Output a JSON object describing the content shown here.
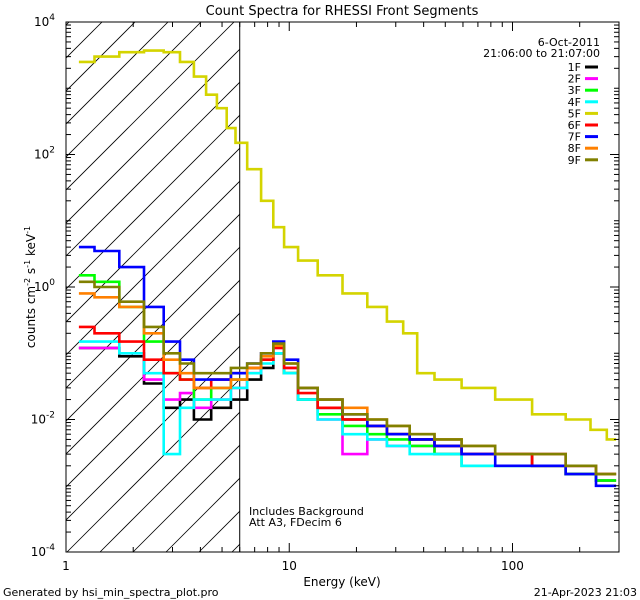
{
  "chart_data": {
    "type": "line",
    "title": "Count Spectra for RHESSI Front Segments",
    "xlabel": "Energy (keV)",
    "ylabel_base": "counts cm",
    "ylabel_exp1": "-2",
    "ylabel_mid": " s",
    "ylabel_exp2": "-1",
    "ylabel_end": " keV",
    "ylabel_exp3": "-1",
    "xscale": "log",
    "yscale": "log",
    "xlim": [
      1,
      300
    ],
    "ylim": [
      0.0001,
      10000
    ],
    "x_ticks": [
      {
        "value": 1,
        "label": "1"
      },
      {
        "value": 10,
        "label": "10"
      },
      {
        "value": 100,
        "label": "100"
      }
    ],
    "y_ticks": [
      {
        "value": 0.0001,
        "label": "10",
        "exp": "-4"
      },
      {
        "value": 0.01,
        "label": "10",
        "exp": "-2"
      },
      {
        "value": 1,
        "label": "10",
        "exp": "0"
      },
      {
        "value": 100,
        "label": "10",
        "exp": "2"
      },
      {
        "value": 10000,
        "label": "10",
        "exp": "4"
      }
    ],
    "date": "6-Oct-2011",
    "time_range": "21:06:00 to 21:07:00",
    "hatched_below_keV": 6,
    "annotation_line1": "Includes Background",
    "annotation_line2": "Att A3, FDecim 6",
    "series": [
      {
        "name": "1F",
        "color": "#000000",
        "values": [
          [
            1.2,
            0.12
          ],
          [
            1.5,
            0.12
          ],
          [
            2.0,
            0.09
          ],
          [
            2.5,
            0.035
          ],
          [
            3.0,
            0.015
          ],
          [
            3.5,
            0.02
          ],
          [
            4.0,
            0.01
          ],
          [
            5.0,
            0.015
          ],
          [
            6.0,
            0.02
          ],
          [
            7.0,
            0.04
          ],
          [
            8.0,
            0.06
          ],
          [
            9.0,
            0.1
          ],
          [
            10.0,
            0.05
          ],
          [
            12.0,
            0.02
          ],
          [
            15.0,
            0.015
          ],
          [
            20.0,
            0.01
          ],
          [
            25.0,
            0.008
          ],
          [
            30.0,
            0.006
          ],
          [
            40.0,
            0.005
          ],
          [
            50.0,
            0.004
          ],
          [
            70.0,
            0.003
          ],
          [
            100.0,
            0.003
          ],
          [
            150.0,
            0.002
          ],
          [
            200.0,
            0.0015
          ],
          [
            280.0,
            0.0012
          ]
        ]
      },
      {
        "name": "2F",
        "color": "#ff00ff",
        "values": [
          [
            1.2,
            0.12
          ],
          [
            1.5,
            0.12
          ],
          [
            2.0,
            0.1
          ],
          [
            2.5,
            0.04
          ],
          [
            3.0,
            0.02
          ],
          [
            3.5,
            0.025
          ],
          [
            4.0,
            0.015
          ],
          [
            5.0,
            0.02
          ],
          [
            6.0,
            0.03
          ],
          [
            7.0,
            0.05
          ],
          [
            8.0,
            0.08
          ],
          [
            9.0,
            0.12
          ],
          [
            10.0,
            0.06
          ],
          [
            12.0,
            0.02
          ],
          [
            15.0,
            0.01
          ],
          [
            20.0,
            0.003
          ],
          [
            25.0,
            0.005
          ],
          [
            30.0,
            0.004
          ],
          [
            40.0,
            0.004
          ],
          [
            50.0,
            0.003
          ],
          [
            70.0,
            0.003
          ],
          [
            100.0,
            0.003
          ],
          [
            150.0,
            0.003
          ],
          [
            200.0,
            0.002
          ],
          [
            280.0,
            0.0015
          ]
        ]
      },
      {
        "name": "3F",
        "color": "#00ff00",
        "values": [
          [
            1.2,
            1.5
          ],
          [
            1.5,
            1.2
          ],
          [
            2.0,
            0.5
          ],
          [
            2.5,
            0.15
          ],
          [
            3.0,
            0.05
          ],
          [
            3.5,
            0.04
          ],
          [
            4.0,
            0.02
          ],
          [
            5.0,
            0.03
          ],
          [
            6.0,
            0.04
          ],
          [
            7.0,
            0.06
          ],
          [
            8.0,
            0.08
          ],
          [
            9.0,
            0.1
          ],
          [
            10.0,
            0.05
          ],
          [
            12.0,
            0.02
          ],
          [
            15.0,
            0.012
          ],
          [
            20.0,
            0.008
          ],
          [
            25.0,
            0.006
          ],
          [
            30.0,
            0.005
          ],
          [
            40.0,
            0.004
          ],
          [
            50.0,
            0.003
          ],
          [
            70.0,
            0.002
          ],
          [
            100.0,
            0.002
          ],
          [
            150.0,
            0.002
          ],
          [
            200.0,
            0.0015
          ],
          [
            280.0,
            0.0012
          ]
        ]
      },
      {
        "name": "4F",
        "color": "#00ffff",
        "values": [
          [
            1.2,
            0.15
          ],
          [
            1.5,
            0.15
          ],
          [
            2.0,
            0.1
          ],
          [
            2.5,
            0.05
          ],
          [
            3.0,
            0.003
          ],
          [
            3.5,
            0.015
          ],
          [
            4.0,
            0.02
          ],
          [
            5.0,
            0.02
          ],
          [
            6.0,
            0.03
          ],
          [
            7.0,
            0.05
          ],
          [
            8.0,
            0.07
          ],
          [
            9.0,
            0.1
          ],
          [
            10.0,
            0.05
          ],
          [
            12.0,
            0.02
          ],
          [
            15.0,
            0.01
          ],
          [
            20.0,
            0.006
          ],
          [
            25.0,
            0.005
          ],
          [
            30.0,
            0.004
          ],
          [
            40.0,
            0.003
          ],
          [
            50.0,
            0.003
          ],
          [
            70.0,
            0.002
          ],
          [
            100.0,
            0.002
          ],
          [
            150.0,
            0.002
          ],
          [
            200.0,
            0.002
          ],
          [
            280.0,
            0.0015
          ]
        ]
      },
      {
        "name": "5F",
        "color": "#d4d400",
        "values": [
          [
            1.2,
            2500
          ],
          [
            1.5,
            3000
          ],
          [
            2.0,
            3500
          ],
          [
            2.5,
            3700
          ],
          [
            3.0,
            3500
          ],
          [
            3.5,
            2500
          ],
          [
            4.0,
            1500
          ],
          [
            4.5,
            800
          ],
          [
            5.0,
            500
          ],
          [
            5.5,
            250
          ],
          [
            6.0,
            150
          ],
          [
            7.0,
            60
          ],
          [
            8.0,
            20
          ],
          [
            9.0,
            8
          ],
          [
            10.0,
            4
          ],
          [
            12.0,
            2.5
          ],
          [
            15.0,
            1.5
          ],
          [
            20.0,
            0.8
          ],
          [
            25.0,
            0.5
          ],
          [
            30.0,
            0.3
          ],
          [
            35.0,
            0.2
          ],
          [
            40.0,
            0.05
          ],
          [
            50.0,
            0.04
          ],
          [
            70.0,
            0.03
          ],
          [
            100.0,
            0.02
          ],
          [
            150.0,
            0.012
          ],
          [
            200.0,
            0.01
          ],
          [
            250.0,
            0.007
          ],
          [
            280.0,
            0.005
          ]
        ]
      },
      {
        "name": "6F",
        "color": "#ff0000",
        "values": [
          [
            1.2,
            0.25
          ],
          [
            1.5,
            0.2
          ],
          [
            2.0,
            0.15
          ],
          [
            2.5,
            0.08
          ],
          [
            3.0,
            0.05
          ],
          [
            3.5,
            0.04
          ],
          [
            4.0,
            0.03
          ],
          [
            5.0,
            0.04
          ],
          [
            6.0,
            0.05
          ],
          [
            7.0,
            0.06
          ],
          [
            8.0,
            0.08
          ],
          [
            9.0,
            0.12
          ],
          [
            10.0,
            0.06
          ],
          [
            12.0,
            0.025
          ],
          [
            15.0,
            0.015
          ],
          [
            20.0,
            0.01
          ],
          [
            25.0,
            0.008
          ],
          [
            30.0,
            0.006
          ],
          [
            40.0,
            0.005
          ],
          [
            50.0,
            0.004
          ],
          [
            70.0,
            0.003
          ],
          [
            100.0,
            0.003
          ],
          [
            150.0,
            0.002
          ],
          [
            200.0,
            0.002
          ],
          [
            280.0,
            0.0015
          ]
        ]
      },
      {
        "name": "7F",
        "color": "#0000ff",
        "values": [
          [
            1.2,
            4.0
          ],
          [
            1.5,
            3.5
          ],
          [
            2.0,
            2.0
          ],
          [
            2.5,
            0.5
          ],
          [
            3.0,
            0.15
          ],
          [
            3.5,
            0.08
          ],
          [
            4.0,
            0.04
          ],
          [
            5.0,
            0.04
          ],
          [
            6.0,
            0.05
          ],
          [
            7.0,
            0.07
          ],
          [
            8.0,
            0.1
          ],
          [
            9.0,
            0.15
          ],
          [
            10.0,
            0.08
          ],
          [
            12.0,
            0.03
          ],
          [
            15.0,
            0.02
          ],
          [
            20.0,
            0.012
          ],
          [
            25.0,
            0.008
          ],
          [
            30.0,
            0.006
          ],
          [
            40.0,
            0.005
          ],
          [
            50.0,
            0.004
          ],
          [
            70.0,
            0.003
          ],
          [
            100.0,
            0.002
          ],
          [
            150.0,
            0.002
          ],
          [
            200.0,
            0.0015
          ],
          [
            280.0,
            0.001
          ]
        ]
      },
      {
        "name": "8F",
        "color": "#ff8000",
        "values": [
          [
            1.2,
            0.8
          ],
          [
            1.5,
            0.7
          ],
          [
            2.0,
            0.5
          ],
          [
            2.5,
            0.2
          ],
          [
            3.0,
            0.08
          ],
          [
            3.5,
            0.05
          ],
          [
            4.0,
            0.03
          ],
          [
            5.0,
            0.03
          ],
          [
            6.0,
            0.04
          ],
          [
            7.0,
            0.06
          ],
          [
            8.0,
            0.09
          ],
          [
            9.0,
            0.13
          ],
          [
            10.0,
            0.07
          ],
          [
            12.0,
            0.03
          ],
          [
            15.0,
            0.02
          ],
          [
            20.0,
            0.015
          ],
          [
            25.0,
            0.01
          ],
          [
            30.0,
            0.008
          ],
          [
            40.0,
            0.006
          ],
          [
            50.0,
            0.005
          ],
          [
            70.0,
            0.004
          ],
          [
            100.0,
            0.003
          ],
          [
            150.0,
            0.003
          ],
          [
            200.0,
            0.002
          ],
          [
            280.0,
            0.0015
          ]
        ]
      },
      {
        "name": "9F",
        "color": "#808000",
        "values": [
          [
            1.2,
            1.2
          ],
          [
            1.5,
            1.0
          ],
          [
            2.0,
            0.6
          ],
          [
            2.5,
            0.25
          ],
          [
            3.0,
            0.1
          ],
          [
            3.5,
            0.07
          ],
          [
            4.0,
            0.05
          ],
          [
            5.0,
            0.05
          ],
          [
            6.0,
            0.06
          ],
          [
            7.0,
            0.07
          ],
          [
            8.0,
            0.1
          ],
          [
            9.0,
            0.14
          ],
          [
            10.0,
            0.07
          ],
          [
            12.0,
            0.03
          ],
          [
            15.0,
            0.02
          ],
          [
            20.0,
            0.012
          ],
          [
            25.0,
            0.01
          ],
          [
            30.0,
            0.008
          ],
          [
            40.0,
            0.006
          ],
          [
            50.0,
            0.005
          ],
          [
            70.0,
            0.004
          ],
          [
            100.0,
            0.003
          ],
          [
            150.0,
            0.003
          ],
          [
            200.0,
            0.002
          ],
          [
            280.0,
            0.0015
          ]
        ]
      }
    ]
  },
  "footer": {
    "generated_by": "Generated by hsi_min_spectra_plot.pro",
    "timestamp": "21-Apr-2023 21:03"
  }
}
